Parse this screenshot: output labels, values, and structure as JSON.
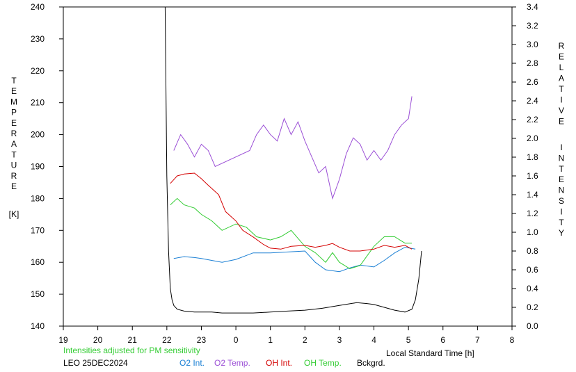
{
  "colors": {
    "o2_int": "#1a7fd4",
    "o2_temp": "#9b4fd6",
    "oh_int": "#d40000",
    "oh_temp": "#33cc33",
    "background": "#000000",
    "note": "#33cc33"
  },
  "chart_data": {
    "type": "line",
    "xlabel": "Local Standard Time [h]",
    "left_ylabel_letters": [
      "T",
      "E",
      "M",
      "P",
      "E",
      "R",
      "A",
      "T",
      "U",
      "R",
      "E",
      "[K]"
    ],
    "right_ylabel_letters": [
      "R",
      "E",
      "L",
      "A",
      "T",
      "I",
      "V",
      "E",
      "I",
      "N",
      "T",
      "E",
      "N",
      "S",
      "I",
      "T",
      "Y"
    ],
    "xlim": [
      19,
      32
    ],
    "ylim_left": [
      140,
      240
    ],
    "ylim_right": [
      0.0,
      3.4
    ],
    "x_tick_labels": [
      "19",
      "20",
      "21",
      "22",
      "23",
      "0",
      "1",
      "2",
      "3",
      "4",
      "5",
      "6",
      "7",
      "8"
    ],
    "y_left_tick_labels": [
      "140",
      "150",
      "160",
      "170",
      "180",
      "190",
      "200",
      "210",
      "220",
      "230",
      "240"
    ],
    "y_right_tick_labels": [
      "0.0",
      "0.2",
      "0.4",
      "0.6",
      "0.8",
      "1.0",
      "1.2",
      "1.4",
      "1.6",
      "1.8",
      "2.0",
      "2.2",
      "2.4",
      "2.6",
      "2.8",
      "3.0",
      "3.2",
      "3.4"
    ],
    "note": "Intensities adjusted for PM sensitivity",
    "site_label": "LEO 25DEC2024",
    "grid": false,
    "legend": [
      {
        "label": "O2 Int.",
        "color_key": "o2_int"
      },
      {
        "label": "O2 Temp.",
        "color_key": "o2_temp"
      },
      {
        "label": "OH Int.",
        "color_key": "oh_int"
      },
      {
        "label": "OH Temp.",
        "color_key": "oh_temp"
      },
      {
        "label": "Bckgrd.",
        "color_key": "background"
      }
    ],
    "series": [
      {
        "name": "Bckgrd.",
        "color_key": "background",
        "axis": "right",
        "x": [
          21.95,
          22.0,
          22.05,
          22.1,
          22.15,
          22.2,
          22.3,
          22.5,
          22.8,
          23.0,
          23.3,
          23.6,
          24.0,
          24.5,
          25.0,
          25.5,
          26.0,
          26.5,
          27.0,
          27.5,
          27.8,
          28.0,
          28.3,
          28.6,
          28.9,
          29.1,
          29.2,
          29.3,
          29.38
        ],
        "y": [
          3.4,
          1.6,
          0.8,
          0.4,
          0.28,
          0.22,
          0.18,
          0.16,
          0.15,
          0.15,
          0.15,
          0.14,
          0.14,
          0.14,
          0.15,
          0.16,
          0.17,
          0.19,
          0.22,
          0.25,
          0.24,
          0.23,
          0.2,
          0.17,
          0.15,
          0.18,
          0.28,
          0.5,
          0.8
        ]
      },
      {
        "name": "O2 Int.",
        "color_key": "o2_int",
        "axis": "right",
        "x": [
          22.2,
          22.5,
          22.8,
          23.0,
          23.3,
          23.6,
          24.0,
          24.5,
          25.0,
          25.5,
          26.0,
          26.3,
          26.6,
          27.0,
          27.3,
          27.6,
          28.0,
          28.3,
          28.6,
          28.9,
          29.2
        ],
        "y": [
          0.72,
          0.74,
          0.73,
          0.72,
          0.7,
          0.68,
          0.71,
          0.78,
          0.78,
          0.79,
          0.8,
          0.68,
          0.6,
          0.58,
          0.62,
          0.65,
          0.63,
          0.7,
          0.78,
          0.84,
          0.82
        ]
      },
      {
        "name": "O2 Temp.",
        "color_key": "o2_temp",
        "axis": "left",
        "x": [
          22.2,
          22.4,
          22.6,
          22.8,
          23.0,
          23.2,
          23.4,
          24.4,
          24.6,
          24.8,
          25.0,
          25.2,
          25.4,
          25.6,
          25.8,
          26.0,
          26.2,
          26.4,
          26.6,
          26.8,
          27.0,
          27.2,
          27.4,
          27.6,
          27.8,
          28.0,
          28.2,
          28.4,
          28.6,
          28.8,
          29.0,
          29.1
        ],
        "y": [
          195,
          200,
          197,
          193,
          197,
          195,
          190,
          195,
          200,
          203,
          200,
          198,
          205,
          200,
          204,
          198,
          193,
          188,
          190,
          180,
          186,
          194,
          199,
          197,
          192,
          195,
          192,
          195,
          200,
          203,
          205,
          212
        ]
      },
      {
        "name": "OH Int.",
        "color_key": "oh_int",
        "axis": "right",
        "x": [
          22.1,
          22.3,
          22.5,
          22.8,
          23.0,
          23.2,
          23.5,
          23.7,
          24.0,
          24.2,
          24.5,
          24.8,
          25.0,
          25.3,
          25.6,
          26.0,
          26.3,
          26.6,
          26.8,
          27.0,
          27.3,
          27.6,
          28.0,
          28.3,
          28.6,
          28.9,
          29.1
        ],
        "y": [
          1.52,
          1.6,
          1.62,
          1.63,
          1.57,
          1.5,
          1.4,
          1.22,
          1.12,
          1.02,
          0.95,
          0.87,
          0.83,
          0.82,
          0.85,
          0.86,
          0.84,
          0.86,
          0.88,
          0.84,
          0.8,
          0.8,
          0.82,
          0.86,
          0.84,
          0.86,
          0.82
        ]
      },
      {
        "name": "OH Temp.",
        "color_key": "oh_temp",
        "axis": "left",
        "x": [
          22.1,
          22.3,
          22.5,
          22.8,
          23.0,
          23.3,
          23.6,
          24.0,
          24.3,
          24.6,
          25.0,
          25.3,
          25.6,
          26.0,
          26.3,
          26.6,
          26.8,
          27.0,
          27.3,
          27.6,
          28.0,
          28.3,
          28.6,
          28.9,
          29.1
        ],
        "y": [
          178,
          180,
          178,
          177,
          175,
          173,
          170,
          172,
          171,
          168,
          167,
          168,
          170,
          165,
          163,
          160,
          163,
          160,
          158,
          159,
          165,
          168,
          168,
          166,
          166
        ]
      }
    ]
  }
}
